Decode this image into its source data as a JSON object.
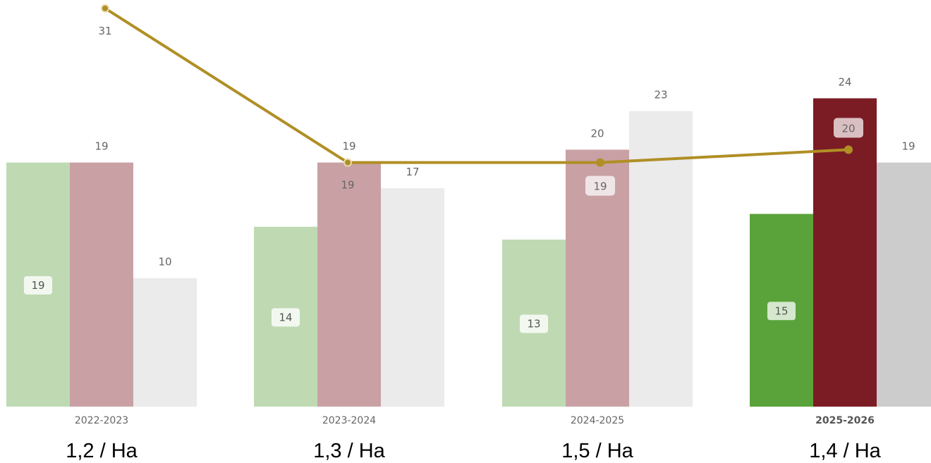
{
  "chart_data": {
    "type": "bar",
    "categories": [
      "2022-2023",
      "2023-2024",
      "2024-2025",
      "2025-2026"
    ],
    "current_category": "2025-2026",
    "series": [
      {
        "kind": "bar",
        "values": [
          19,
          14,
          13,
          15
        ],
        "labels_inside": true,
        "colors": [
          "#bfdab3",
          "#bfdab3",
          "#bfdab3",
          "#5aa33a"
        ]
      },
      {
        "kind": "bar",
        "values": [
          19,
          19,
          20,
          24
        ],
        "labels_inside": false,
        "colors": [
          "#c9a1a5",
          "#c9a1a5",
          "#c9a1a5",
          "#7b1c24"
        ]
      },
      {
        "kind": "bar",
        "values": [
          10,
          17,
          23,
          19
        ],
        "labels_inside": false,
        "colors": [
          "#ebebeb",
          "#ebebeb",
          "#ebebeb",
          "#cccccc"
        ]
      },
      {
        "kind": "line",
        "values": [
          31,
          19,
          19,
          20
        ],
        "color": "#b08f25"
      }
    ],
    "per_category_labels": [
      "1,2 / Ha",
      "1,3 / Ha",
      "1,5 / Ha",
      "1,4 / Ha"
    ],
    "ylim": [
      0,
      32
    ],
    "title": "",
    "xlabel": "",
    "ylabel": "",
    "grid": false,
    "legend": "none"
  }
}
